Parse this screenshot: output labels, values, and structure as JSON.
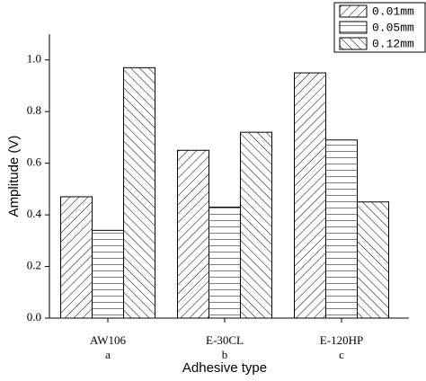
{
  "chart_data": {
    "type": "bar",
    "x_label": "Adhesive type",
    "y_label": "Amplitude (V)",
    "categories": [
      "AW106",
      "E-30CL",
      "E-120HP"
    ],
    "category_sublabels": [
      "a",
      "b",
      "c"
    ],
    "series": [
      {
        "name": "0.01mm",
        "color": "#000000",
        "hatch": "/",
        "values": [
          0.47,
          0.65,
          0.95
        ]
      },
      {
        "name": "0.05mm",
        "color": "#000000",
        "hatch": "-",
        "values": [
          0.34,
          0.43,
          0.69
        ]
      },
      {
        "name": "0.12mm",
        "color": "#000000",
        "hatch": "\\",
        "values": [
          0.97,
          0.72,
          0.45
        ]
      }
    ],
    "ylim": [
      0,
      1.1
    ],
    "yticks": [
      {
        "value": 0,
        "label": "0.0"
      },
      0.2,
      0.4,
      0.6,
      0.8,
      {
        "value": 1,
        "label": "1.0"
      }
    ],
    "legend": "upper right"
  }
}
